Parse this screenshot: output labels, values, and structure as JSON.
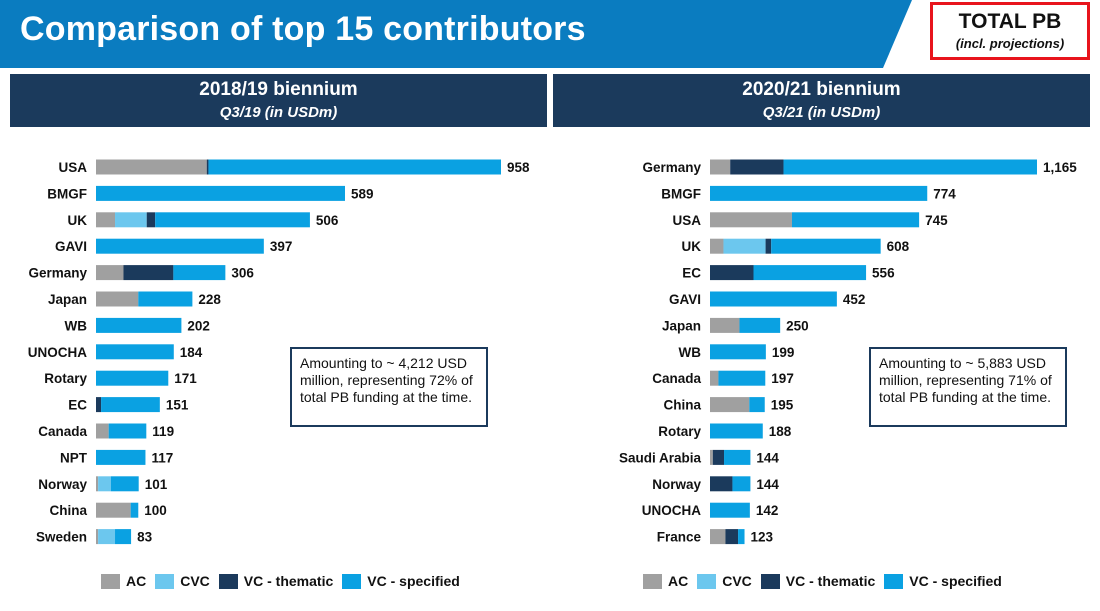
{
  "title": "Comparison of top 15 contributors",
  "total_box": {
    "title": "TOTAL PB",
    "subtitle": "(incl. projections)"
  },
  "colors": {
    "header_band": "#0a7cc0",
    "panel_header": "#1b3a5c",
    "AC": "#a0a0a0",
    "CVC": "#6cc7ee",
    "VC - thematic": "#1b3a5c",
    "VC - specified": "#0aa1e2",
    "border_red": "#e8141c"
  },
  "legend": [
    {
      "name": "AC"
    },
    {
      "name": "CVC"
    },
    {
      "name": "VC - thematic"
    },
    {
      "name": "VC - specified"
    }
  ],
  "chart_data": [
    {
      "type": "bar",
      "orientation": "horizontal",
      "stacked": true,
      "title": "2018/19 biennium",
      "subtitle": "Q3/19 (in USDm)",
      "note": "Amounting to ~ 4,212 USD million, representing 72% of total PB funding at the time.",
      "xlim": [
        0,
        1000
      ],
      "categories": [
        "USA",
        "BMGF",
        "UK",
        "GAVI",
        "Germany",
        "Japan",
        "WB",
        "UNOCHA",
        "Rotary",
        "EC",
        "Canada",
        "NPT",
        "Norway",
        "China",
        "Sweden"
      ],
      "totals": [
        958,
        589,
        506,
        397,
        306,
        228,
        202,
        184,
        171,
        151,
        119,
        117,
        101,
        100,
        83
      ],
      "series": [
        {
          "name": "AC",
          "values": [
            262,
            0,
            45,
            0,
            65,
            100,
            0,
            0,
            0,
            0,
            30,
            0,
            5,
            82,
            5
          ]
        },
        {
          "name": "CVC",
          "values": [
            0,
            0,
            75,
            0,
            0,
            0,
            0,
            0,
            0,
            0,
            0,
            0,
            30,
            0,
            40
          ]
        },
        {
          "name": "VC - thematic",
          "values": [
            4,
            0,
            20,
            0,
            118,
            0,
            0,
            0,
            0,
            12,
            0,
            0,
            0,
            0,
            0
          ]
        },
        {
          "name": "VC - specified",
          "values": [
            692,
            589,
            366,
            397,
            123,
            128,
            202,
            184,
            171,
            139,
            89,
            117,
            66,
            18,
            38
          ]
        }
      ]
    },
    {
      "type": "bar",
      "orientation": "horizontal",
      "stacked": true,
      "title": "2020/21 biennium",
      "subtitle": "Q3/21 (in USDm)",
      "note": "Amounting to ~ 5,883 USD million, representing 71% of total PB funding at the time.",
      "xlim": [
        0,
        1200
      ],
      "categories": [
        "Germany",
        "BMGF",
        "USA",
        "UK",
        "EC",
        "GAVI",
        "Japan",
        "WB",
        "Canada",
        "China",
        "Rotary",
        "Saudi Arabia",
        "Norway",
        "UNOCHA",
        "France"
      ],
      "totals": [
        1165,
        774,
        745,
        608,
        556,
        452,
        250,
        199,
        197,
        195,
        188,
        144,
        144,
        142,
        123
      ],
      "series": [
        {
          "name": "AC",
          "values": [
            72,
            0,
            292,
            48,
            0,
            0,
            105,
            0,
            30,
            140,
            0,
            10,
            0,
            0,
            55
          ]
        },
        {
          "name": "CVC",
          "values": [
            0,
            0,
            0,
            150,
            0,
            0,
            0,
            0,
            0,
            0,
            0,
            0,
            0,
            0,
            0
          ]
        },
        {
          "name": "VC - thematic",
          "values": [
            190,
            0,
            0,
            20,
            155,
            0,
            0,
            0,
            0,
            0,
            0,
            40,
            80,
            0,
            45
          ]
        },
        {
          "name": "VC - specified",
          "values": [
            903,
            774,
            453,
            390,
            401,
            452,
            145,
            199,
            167,
            55,
            188,
            94,
            64,
            142,
            23
          ]
        }
      ]
    }
  ]
}
